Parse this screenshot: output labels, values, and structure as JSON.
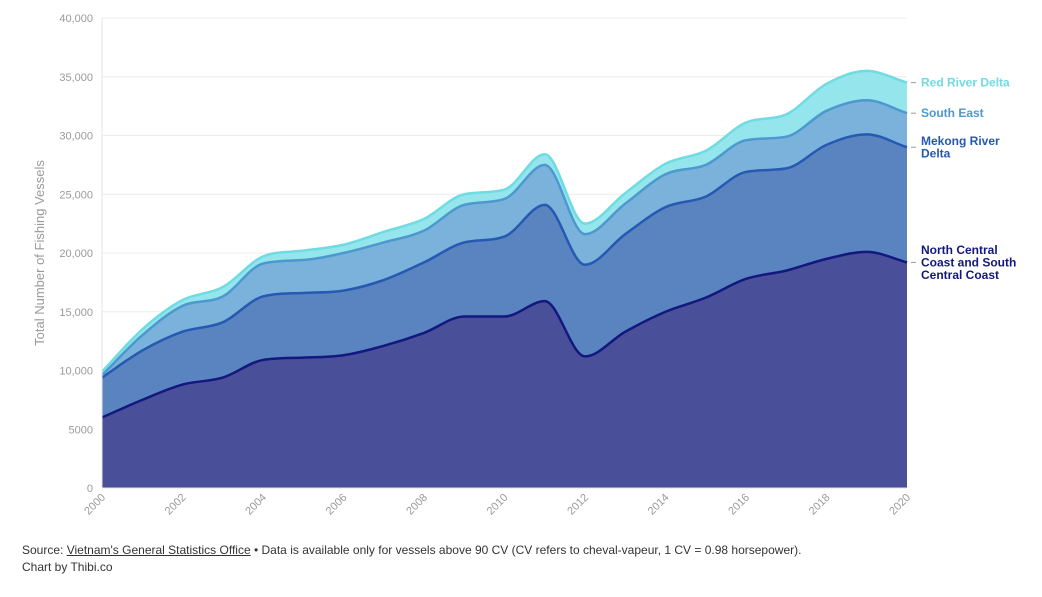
{
  "chart_data": {
    "type": "area",
    "stacked": true,
    "x": [
      2000,
      2001,
      2002,
      2003,
      2004,
      2005,
      2006,
      2007,
      2008,
      2009,
      2010,
      2011,
      2012,
      2013,
      2014,
      2015,
      2016,
      2017,
      2018,
      2019,
      2020
    ],
    "ylabel": "Total Number of Fishing Vessels",
    "ylim": [
      0,
      40000
    ],
    "yticks": [
      0,
      5000,
      10000,
      15000,
      20000,
      25000,
      30000,
      35000,
      40000
    ],
    "ytick_labels": [
      "0",
      "5000",
      "10,000",
      "15,000",
      "20,000",
      "25,000",
      "30,000",
      "35,000",
      "40,000"
    ],
    "xticks": [
      "2000",
      "2002",
      "2004",
      "2006",
      "2008",
      "2010",
      "2012",
      "2014",
      "2016",
      "2018",
      "2020"
    ],
    "grid": true,
    "series": [
      {
        "name": "North Central Coast and South Central Coast",
        "label_lines": [
          "North Central",
          "Coast and South",
          "Central Coast"
        ],
        "color": "#13187e",
        "fill": "#4a4f9a",
        "values": [
          6000,
          7500,
          8800,
          9400,
          10900,
          11100,
          11300,
          12100,
          13200,
          14600,
          14600,
          15900,
          11200,
          13300,
          15000,
          16200,
          17800,
          18500,
          19500,
          20100,
          19200
        ]
      },
      {
        "name": "Mekong River Delta",
        "label_lines": [
          "Mekong River",
          "Delta"
        ],
        "color": "#2559b2",
        "fill": "#5a84bf",
        "values": [
          3400,
          4200,
          4500,
          4700,
          5400,
          5500,
          5500,
          5600,
          6000,
          6300,
          6800,
          8200,
          7800,
          8300,
          8900,
          8600,
          9100,
          8700,
          9700,
          10000,
          9800
        ]
      },
      {
        "name": "South East",
        "label_lines": [
          "South East"
        ],
        "color": "#4d98cf",
        "fill": "#7ab2db",
        "values": [
          200,
          1300,
          2200,
          2200,
          2800,
          2800,
          3200,
          3200,
          2700,
          3200,
          3200,
          3400,
          2600,
          2600,
          2800,
          2700,
          2700,
          2700,
          2900,
          2900,
          2900
        ]
      },
      {
        "name": "Red River Delta",
        "label_lines": [
          "Red River Delta"
        ],
        "color": "#6fdbe3",
        "fill": "#95e5ec",
        "values": [
          300,
          500,
          500,
          800,
          600,
          800,
          700,
          900,
          1000,
          900,
          800,
          900,
          900,
          900,
          900,
          1200,
          1500,
          1900,
          2300,
          2500,
          2600
        ]
      }
    ]
  },
  "footer": {
    "source_prefix": "Source: ",
    "source_link": "Vietnam's General Statistics Office",
    "source_note": " • Data is available only for vessels above 90 CV (CV refers to cheval-vapeur, 1 CV = 0.98 horsepower).",
    "credit": "Chart by Thibi.co"
  }
}
